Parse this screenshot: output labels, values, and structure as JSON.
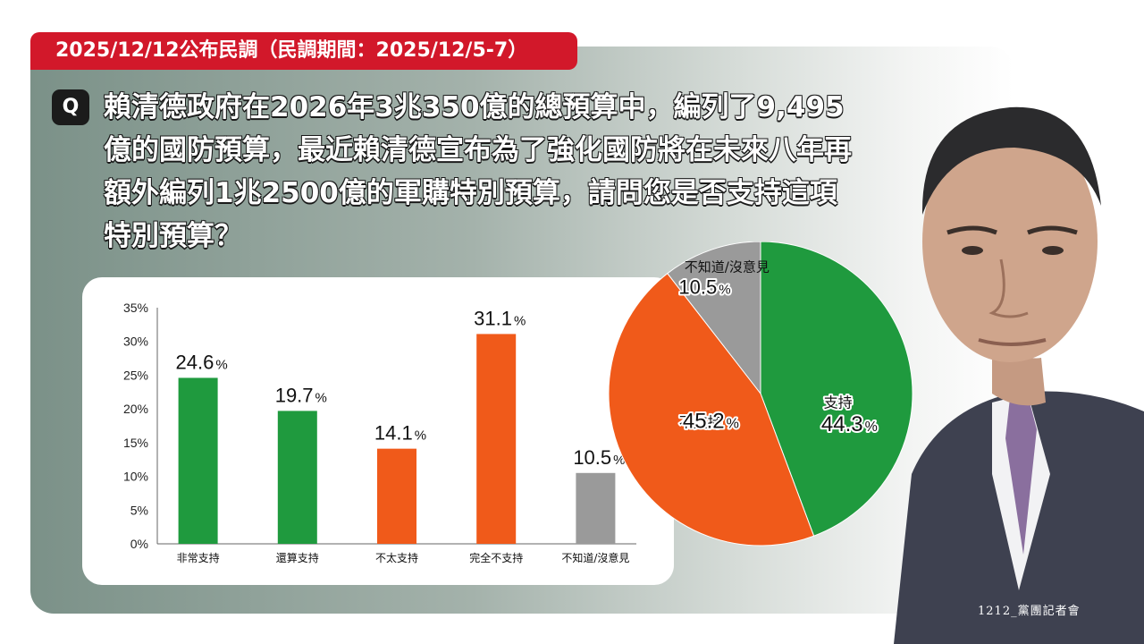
{
  "header": {
    "banner_text": "2025/12/12公布民調（民調期間：2025/12/5-7）"
  },
  "question": {
    "badge": "Q",
    "text": "賴清德政府在2026年3兆350億的總預算中，編列了9,495億的國防預算，最近賴清德宣布為了強化國防將在未來八年再額外編列1兆2500億的軍購特別預算，請問您是否支持這項特別預算？"
  },
  "footer": {
    "caption": "1212_黨團記者會"
  },
  "colors": {
    "support": "#1f9a3e",
    "oppose": "#f05a1a",
    "unknown": "#9a9a9a",
    "banner": "#d2182a"
  },
  "chart_data": [
    {
      "type": "bar",
      "categories": [
        "非常支持",
        "還算支持",
        "不太支持",
        "完全不支持",
        "不知道/沒意見"
      ],
      "values": [
        24.6,
        19.7,
        14.1,
        31.1,
        10.5
      ],
      "value_labels": [
        "24.6",
        "19.7",
        "14.1",
        "31.1",
        "10.5"
      ],
      "value_suffix": "%",
      "bar_colors": [
        "#1f9a3e",
        "#1f9a3e",
        "#f05a1a",
        "#f05a1a",
        "#9a9a9a"
      ],
      "y_ticks": [
        "0%",
        "5%",
        "10%",
        "15%",
        "20%",
        "25%",
        "30%",
        "35%"
      ],
      "ylim": [
        0,
        35
      ],
      "grid": false
    },
    {
      "type": "pie",
      "slices": [
        {
          "label": "支持",
          "value": 44.3,
          "value_label": "44.3",
          "color": "#1f9a3e"
        },
        {
          "label": "不支持",
          "value": 45.2,
          "value_label": "45.2",
          "color": "#f05a1a"
        },
        {
          "label": "不知道/沒意見",
          "value": 10.5,
          "value_label": "10.5",
          "color": "#9a9a9a"
        }
      ],
      "value_suffix": "%",
      "start": "12 o'clock",
      "direction": "clockwise"
    }
  ]
}
